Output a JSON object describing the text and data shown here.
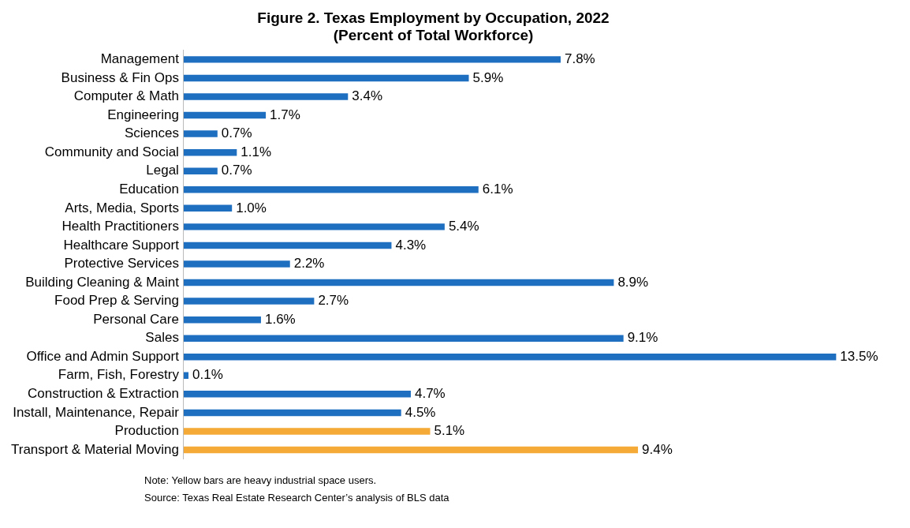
{
  "chart_data": {
    "type": "bar",
    "orientation": "horizontal",
    "title": "Figure 2. Texas Employment by Occupation, 2022",
    "subtitle": "(Percent of Total Workforce)",
    "categories": [
      "Management",
      "Business & Fin Ops",
      "Computer & Math",
      "Engineering",
      "Sciences",
      "Community and Social",
      "Legal",
      "Education",
      "Arts, Media, Sports",
      "Health Practitioners",
      "Healthcare Support",
      "Protective Services",
      "Building Cleaning & Maint",
      "Food Prep & Serving",
      "Personal Care",
      "Sales",
      "Office and Admin Support",
      "Farm, Fish, Forestry",
      "Construction & Extraction",
      "Install, Maintenance, Repair",
      "Production",
      "Transport & Material Moving"
    ],
    "values": [
      7.8,
      5.9,
      3.4,
      1.7,
      0.7,
      1.1,
      0.7,
      6.1,
      1.0,
      5.4,
      4.3,
      2.2,
      8.9,
      2.7,
      1.6,
      9.1,
      13.5,
      0.1,
      4.7,
      4.5,
      5.1,
      9.4
    ],
    "value_labels": [
      "7.8%",
      "5.9%",
      "3.4%",
      "1.7%",
      "0.7%",
      "1.1%",
      "0.7%",
      "6.1%",
      "1.0%",
      "5.4%",
      "4.3%",
      "2.2%",
      "8.9%",
      "2.7%",
      "1.6%",
      "9.1%",
      "13.5%",
      "0.1%",
      "4.7%",
      "4.5%",
      "5.1%",
      "9.4%"
    ],
    "colors": [
      "#1f6fc1",
      "#1f6fc1",
      "#1f6fc1",
      "#1f6fc1",
      "#1f6fc1",
      "#1f6fc1",
      "#1f6fc1",
      "#1f6fc1",
      "#1f6fc1",
      "#1f6fc1",
      "#1f6fc1",
      "#1f6fc1",
      "#1f6fc1",
      "#1f6fc1",
      "#1f6fc1",
      "#1f6fc1",
      "#1f6fc1",
      "#1f6fc1",
      "#1f6fc1",
      "#1f6fc1",
      "#f5a936",
      "#f5a936"
    ],
    "annotations": [
      "Note: Yellow bars are heavy industrial space users.",
      "Source: Texas Real Estate Research Center’s analysis of BLS data"
    ]
  }
}
